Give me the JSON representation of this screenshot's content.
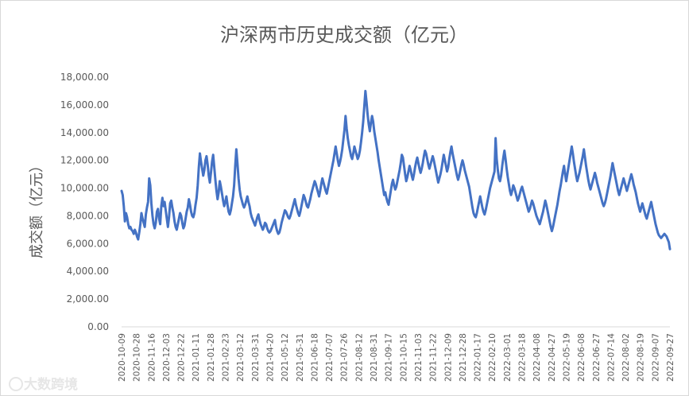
{
  "chart_data": {
    "type": "line",
    "title": "沪深两市历史成交额（亿元）",
    "xlabel": "",
    "ylabel": "成交额（亿元）",
    "ylim": [
      0,
      18000
    ],
    "yticks": [
      0,
      2000,
      4000,
      6000,
      8000,
      10000,
      12000,
      14000,
      16000,
      18000
    ],
    "ytick_labels": [
      "0.00",
      "2,000.00",
      "4,000.00",
      "6,000.00",
      "8,000.00",
      "10,000.00",
      "12,000.00",
      "14,000.00",
      "16,000.00",
      "18,000.00"
    ],
    "x_tick_labels": [
      "2020-10-09",
      "2020-10-28",
      "2020-11-16",
      "2020-12-03",
      "2020-12-22",
      "2021-01-11",
      "2021-01-28",
      "2021-02-23",
      "2021-03-12",
      "2021-03-31",
      "2021-04-20",
      "2021-05-12",
      "2021-05-31",
      "2021-06-18",
      "2021-07-07",
      "2021-07-26",
      "2021-08-12",
      "2021-08-31",
      "2021-09-17",
      "2021-10-15",
      "2021-11-03",
      "2021-11-22",
      "2021-12-09",
      "2021-12-28",
      "2022-01-17",
      "2022-02-10",
      "2022-03-01",
      "2022-03-18",
      "2022-04-08",
      "2022-04-27",
      "2022-05-19",
      "2022-06-08",
      "2022-06-27",
      "2022-07-14",
      "2022-08-02",
      "2022-08-19",
      "2022-09-07",
      "2022-09-27"
    ],
    "line_color": "#4472c4",
    "grid": false,
    "legend": "none",
    "series": [
      {
        "values": [
          9800,
          9500,
          8700,
          7600,
          8200,
          7900,
          7400,
          7100,
          7200,
          7000,
          6900,
          6700,
          7000,
          6800,
          6500,
          6300,
          6800,
          7400,
          8200,
          7800,
          7500,
          7200,
          8100,
          8600,
          9000,
          10700,
          10200,
          8900,
          8000,
          7400,
          7100,
          7500,
          8300,
          8500,
          7800,
          7400,
          8700,
          9300,
          8700,
          9000,
          8400,
          7800,
          7200,
          7900,
          8900,
          9100,
          8600,
          8200,
          7600,
          7200,
          7000,
          7400,
          7800,
          8200,
          8000,
          7500,
          7100,
          7300,
          7800,
          8300,
          8600,
          9200,
          8800,
          8300,
          8000,
          7900,
          8200,
          8800,
          9300,
          10200,
          11500,
          12500,
          11900,
          11400,
          10900,
          11300,
          12000,
          12300,
          11700,
          10900,
          10400,
          11100,
          11900,
          12400,
          11500,
          10600,
          9800,
          9200,
          9700,
          10500,
          10100,
          9600,
          9100,
          8700,
          9000,
          9400,
          8800,
          8300,
          8100,
          8400,
          8900,
          9400,
          10200,
          11600,
          12800,
          11800,
          10700,
          9900,
          9400,
          9100,
          8800,
          8600,
          8800,
          9100,
          9400,
          9000,
          8700,
          8200,
          7900,
          7700,
          7500,
          7300,
          7600,
          7900,
          8100,
          7700,
          7400,
          7200,
          7000,
          7200,
          7500,
          7400,
          7100,
          6900,
          6800,
          6900,
          7100,
          7300,
          7500,
          7700,
          7200,
          6900,
          6700,
          6800,
          7100,
          7500,
          7800,
          8100,
          8400,
          8300,
          8100,
          7900,
          7800,
          8000,
          8300,
          8600,
          8900,
          9200,
          8800,
          8500,
          8200,
          8000,
          8300,
          8700,
          9100,
          9500,
          9300,
          9000,
          8700,
          8600,
          8900,
          9200,
          9600,
          9900,
          10200,
          10500,
          10300,
          10000,
          9700,
          9400,
          9800,
          10300,
          10700,
          10400,
          10100,
          9800,
          9600,
          10000,
          10400,
          10800,
          11200,
          11600,
          12000,
          12500,
          13000,
          12500,
          12000,
          11600,
          11900,
          12300,
          12800,
          13500,
          14200,
          15200,
          14300,
          13600,
          13100,
          12700,
          12300,
          12100,
          12500,
          13000,
          12700,
          12400,
          12100,
          12300,
          12700,
          13300,
          14000,
          14800,
          15900,
          17000,
          16200,
          15300,
          14600,
          14100,
          14700,
          15200,
          14800,
          14100,
          13600,
          13100,
          12600,
          12000,
          11500,
          11000,
          10500,
          10000,
          9500,
          9700,
          9300,
          9000,
          8800,
          9300,
          9800,
          10300,
          10600,
          10200,
          9900,
          10100,
          10500,
          10900,
          11300,
          11800,
          12400,
          12200,
          11600,
          11000,
          10500,
          10800,
          11200,
          11600,
          11300,
          10900,
          10600,
          11000,
          11500,
          11900,
          12200,
          11800,
          11400,
          11100,
          11400,
          11800,
          12300,
          12700,
          12500,
          12100,
          11700,
          11400,
          11700,
          12000,
          12300,
          12000,
          11600,
          11200,
          10800,
          10400,
          10700,
          11000,
          11400,
          11900,
          12400,
          12000,
          11600,
          11200,
          11500,
          12100,
          12600,
          13000,
          12500,
          12100,
          11700,
          11300,
          10900,
          10600,
          10900,
          11300,
          11700,
          12000,
          11700,
          11300,
          11000,
          10700,
          10400,
          10100,
          9600,
          9100,
          8600,
          8200,
          8000,
          7900,
          8200,
          8600,
          9000,
          9400,
          9000,
          8600,
          8300,
          8100,
          8400,
          8800,
          9200,
          9600,
          10000,
          10300,
          10600,
          10900,
          11200,
          13600,
          12100,
          11300,
          10700,
          10500,
          10900,
          11600,
          12200,
          12700,
          12100,
          11400,
          10800,
          10300,
          9800,
          9500,
          9800,
          10200,
          10000,
          9700,
          9400,
          9100,
          9300,
          9600,
          9900,
          10100,
          9800,
          9500,
          9200,
          8900,
          8600,
          8300,
          8500,
          8800,
          9100,
          8900,
          8600,
          8300,
          8000,
          7800,
          7600,
          7400,
          7700,
          8000,
          8300,
          8700,
          9100,
          8800,
          8400,
          8000,
          7600,
          7200,
          6900,
          7200,
          7600,
          8000,
          8400,
          8800,
          9300,
          9800,
          10200,
          10700,
          11200,
          11600,
          11000,
          10500,
          11000,
          11500,
          12000,
          12500,
          13000,
          12500,
          11900,
          11400,
          10900,
          10500,
          10800,
          11100,
          11500,
          11900,
          12300,
          12800,
          12200,
          11600,
          11100,
          10600,
          10200,
          9900,
          10200,
          10500,
          10800,
          11100,
          10800,
          10400,
          10100,
          9800,
          9500,
          9200,
          8900,
          8700,
          8900,
          9200,
          9600,
          10000,
          10400,
          10800,
          11300,
          11800,
          11400,
          11000,
          10600,
          10200,
          9800,
          9500,
          9800,
          10100,
          10400,
          10700,
          10400,
          10100,
          9800,
          10100,
          10400,
          10700,
          11000,
          10700,
          10300,
          10000,
          9700,
          9300,
          8900,
          8600,
          8300,
          8600,
          8900,
          8600,
          8300,
          8000,
          7800,
          8100,
          8400,
          8700,
          9000,
          8600,
          8200,
          7800,
          7400,
          7100,
          6800,
          6600,
          6500,
          6400,
          6500,
          6600,
          6700,
          6600,
          6500,
          6300,
          6100,
          5600
        ]
      }
    ]
  },
  "watermark": {
    "text": "大数跨境",
    "logo_mark": "K"
  }
}
